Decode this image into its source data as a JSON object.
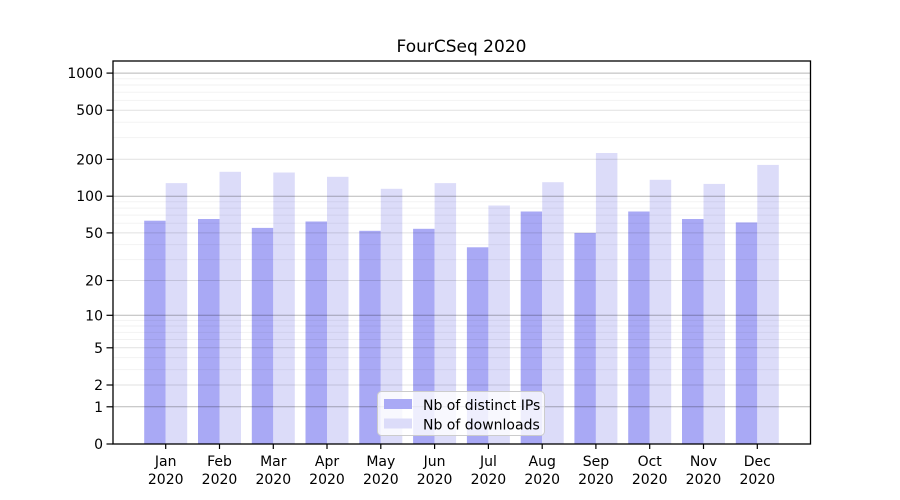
{
  "chart_data": {
    "type": "bar",
    "title": "FourCSeq 2020",
    "categories": [
      "Jan",
      "Feb",
      "Mar",
      "Apr",
      "May",
      "Jun",
      "Jul",
      "Aug",
      "Sep",
      "Oct",
      "Nov",
      "Dec"
    ],
    "category_year": "2020",
    "series": [
      {
        "name": "Nb of distinct IPs",
        "color": "#a9a9f5",
        "values": [
          63,
          65,
          55,
          62,
          52,
          54,
          38,
          75,
          50,
          75,
          65,
          61
        ]
      },
      {
        "name": "Nb of downloads",
        "color": "#dcdcf9",
        "values": [
          128,
          158,
          156,
          144,
          115,
          128,
          84,
          130,
          225,
          136,
          126,
          180
        ]
      }
    ],
    "y_ticks": [
      0,
      1,
      2,
      5,
      10,
      20,
      50,
      100,
      200,
      500,
      1000
    ],
    "y_scale": "log10(value+1)",
    "ylim": [
      0,
      1252
    ],
    "xlabel": "",
    "ylabel": "",
    "grid": "on",
    "legend_position": "lower center",
    "colors": {
      "axis": "#000000",
      "grid_decade": "rgba(0,0,0,0.28)",
      "grid_labeled": "rgba(0,0,0,0.12)",
      "grid_minor": "rgba(0,0,0,0.05)",
      "legend_background": "rgba(255,255,255,0.8)",
      "legend_border": "#cccccc",
      "background": "#ffffff"
    }
  }
}
